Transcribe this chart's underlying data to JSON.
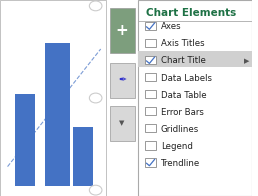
{
  "title": "Chart Elements",
  "title_color": "#1E7145",
  "background_color": "#FFFFFF",
  "panel_bg": "#F3F3F3",
  "items": [
    {
      "label": "Axes",
      "checked": true,
      "highlighted": false
    },
    {
      "label": "Axis Titles",
      "checked": false,
      "highlighted": false
    },
    {
      "label": "Chart Title",
      "checked": true,
      "highlighted": true
    },
    {
      "label": "Data Labels",
      "checked": false,
      "highlighted": false
    },
    {
      "label": "Data Table",
      "checked": false,
      "highlighted": false
    },
    {
      "label": "Error Bars",
      "checked": false,
      "highlighted": false
    },
    {
      "label": "Gridlines",
      "checked": false,
      "highlighted": false
    },
    {
      "label": "Legend",
      "checked": false,
      "highlighted": false
    },
    {
      "label": "Trendline",
      "checked": true,
      "highlighted": false
    }
  ],
  "bar_color": "#4472C4",
  "trendline_color": "#4472C4",
  "button_plus_color": "#7D9E7D",
  "button_bg": "#D8D8D8",
  "check_color": "#4472C4",
  "highlight_bg": "#D0D0D0",
  "border_color": "#AAAAAA",
  "arrow_color": "#555555",
  "circle_color": "#CCCCCC"
}
